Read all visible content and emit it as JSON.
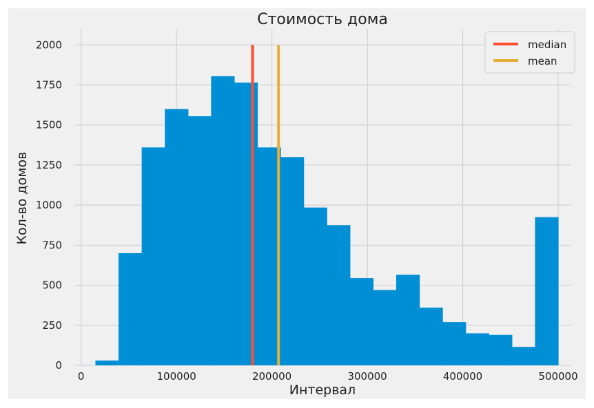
{
  "chart_data": {
    "type": "bar",
    "title": "Стоимость дома",
    "xlabel": "Интервал",
    "ylabel": "Кол-во домов",
    "xlim": [
      -7000,
      513000
    ],
    "ylim": [
      0,
      2100
    ],
    "grid": true,
    "legend_position": "top-right",
    "x_ticks": [
      0,
      100000,
      200000,
      300000,
      400000,
      500000
    ],
    "y_ticks": [
      0,
      250,
      500,
      750,
      1000,
      1250,
      1500,
      1750,
      2000
    ],
    "x_tick_labels": [
      "0",
      "100000",
      "200000",
      "300000",
      "400000",
      "500000"
    ],
    "y_tick_labels": [
      "0",
      "250",
      "500",
      "750",
      "1000",
      "1250",
      "1500",
      "1750",
      "2000"
    ],
    "bins": [
      {
        "start": 15000,
        "end": 39250,
        "value": 30
      },
      {
        "start": 39250,
        "end": 63500,
        "value": 700
      },
      {
        "start": 63500,
        "end": 87750,
        "value": 1360
      },
      {
        "start": 87750,
        "end": 112000,
        "value": 1600
      },
      {
        "start": 112000,
        "end": 136250,
        "value": 1555
      },
      {
        "start": 136250,
        "end": 160500,
        "value": 1805
      },
      {
        "start": 160500,
        "end": 184750,
        "value": 1765
      },
      {
        "start": 184750,
        "end": 209000,
        "value": 1360
      },
      {
        "start": 209000,
        "end": 233250,
        "value": 1300
      },
      {
        "start": 233250,
        "end": 257500,
        "value": 985
      },
      {
        "start": 257500,
        "end": 281750,
        "value": 875
      },
      {
        "start": 281750,
        "end": 306000,
        "value": 545
      },
      {
        "start": 306000,
        "end": 330250,
        "value": 470
      },
      {
        "start": 330250,
        "end": 354500,
        "value": 565
      },
      {
        "start": 354500,
        "end": 378750,
        "value": 360
      },
      {
        "start": 378750,
        "end": 403000,
        "value": 270
      },
      {
        "start": 403000,
        "end": 427250,
        "value": 200
      },
      {
        "start": 427250,
        "end": 451500,
        "value": 190
      },
      {
        "start": 451500,
        "end": 475750,
        "value": 115
      },
      {
        "start": 475750,
        "end": 500000,
        "value": 925
      }
    ],
    "lines": [
      {
        "name": "median",
        "x": 179700,
        "color": "#fc4f30"
      },
      {
        "name": "mean",
        "x": 206900,
        "color": "#e5ae38"
      }
    ],
    "bar_color": "#008fd5",
    "plot_background": "#f0f0f0",
    "grid_color": "#cbcbcb"
  }
}
